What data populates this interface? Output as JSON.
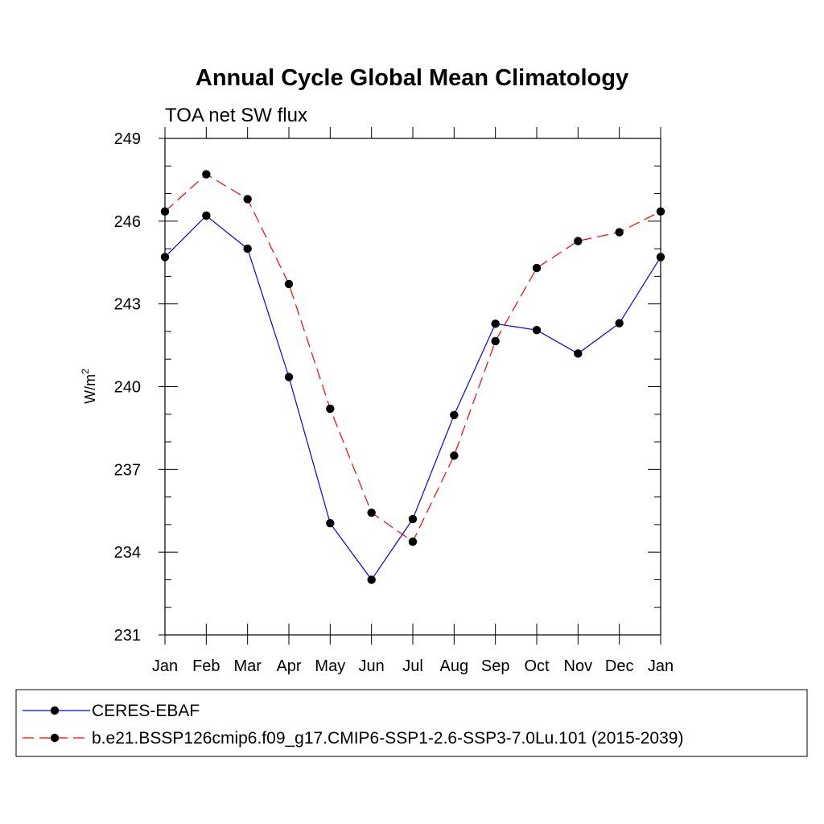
{
  "chart_data": {
    "type": "line",
    "title": "Annual Cycle Global Mean Climatology",
    "subtitle": "TOA net SW flux",
    "ylabel": "W/m",
    "ylabel_superscript": "2",
    "xlabel": "",
    "categories": [
      "Jan",
      "Feb",
      "Mar",
      "Apr",
      "May",
      "Jun",
      "Jul",
      "Aug",
      "Sep",
      "Oct",
      "Nov",
      "Dec",
      "Jan"
    ],
    "yticks": [
      "231",
      "234",
      "237",
      "240",
      "243",
      "246",
      "249"
    ],
    "ylim": [
      231,
      249
    ],
    "grid": false,
    "legend_position": "bottom",
    "series": [
      {
        "name": "CERES-EBAF",
        "color": "#0000ff",
        "dash": "solid",
        "marker": "filled-circle",
        "values": [
          244.7,
          246.2,
          245.0,
          240.35,
          235.05,
          233.0,
          235.2,
          238.97,
          242.28,
          242.05,
          241.2,
          242.3,
          244.7
        ]
      },
      {
        "name": "b.e21.BSSP126cmip6.f09_g17.CMIP6-SSP1-2.6-SSP3-7.0Lu.101 (2015-2039)",
        "color": "#ff0000",
        "dash": "dashed",
        "marker": "filled-circle",
        "values": [
          246.35,
          247.7,
          246.8,
          243.72,
          239.2,
          235.43,
          234.38,
          237.5,
          241.65,
          244.3,
          245.28,
          245.6,
          246.35
        ]
      }
    ]
  }
}
